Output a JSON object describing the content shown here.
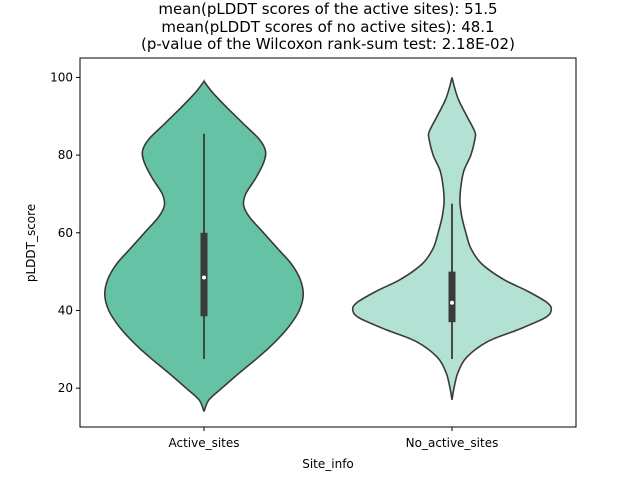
{
  "chart_data": {
    "type": "violin",
    "title_lines": [
      "mean(pLDDT scores of the active sites): 51.5",
      "mean(pLDDT scores of no active sites): 48.1",
      "(p-value of the Wilcoxon rank-sum test: 2.18E-02)"
    ],
    "xlabel": "Site_info",
    "ylabel": "pLDDT_score",
    "ylim": [
      10,
      105
    ],
    "y_ticks": [
      20,
      40,
      60,
      80,
      100
    ],
    "grid": false,
    "categories": [
      "Active_sites",
      "No_active_sites"
    ],
    "series": [
      {
        "category": "Active_sites",
        "color": "#66c2a5",
        "min": 27.5,
        "q1": 38.5,
        "median": 48.5,
        "q3": 60,
        "max": 85.5,
        "density": [
          [
            14,
            0.0
          ],
          [
            17,
            0.05
          ],
          [
            20,
            0.18
          ],
          [
            24,
            0.36
          ],
          [
            28,
            0.55
          ],
          [
            32,
            0.72
          ],
          [
            36,
            0.86
          ],
          [
            40,
            0.96
          ],
          [
            44,
            1.0
          ],
          [
            48,
            0.97
          ],
          [
            52,
            0.88
          ],
          [
            56,
            0.74
          ],
          [
            60,
            0.6
          ],
          [
            64,
            0.46
          ],
          [
            67,
            0.4
          ],
          [
            70,
            0.42
          ],
          [
            74,
            0.52
          ],
          [
            78,
            0.6
          ],
          [
            81,
            0.62
          ],
          [
            84,
            0.56
          ],
          [
            88,
            0.4
          ],
          [
            92,
            0.24
          ],
          [
            96,
            0.09
          ],
          [
            99,
            0.0
          ]
        ]
      },
      {
        "category": "No_active_sites",
        "color": "#b3e2d5",
        "min": 27.5,
        "q1": 37,
        "median": 42,
        "q3": 50,
        "max": 67.5,
        "density": [
          [
            17,
            0.0
          ],
          [
            20,
            0.02
          ],
          [
            24,
            0.06
          ],
          [
            28,
            0.15
          ],
          [
            32,
            0.36
          ],
          [
            35,
            0.66
          ],
          [
            38,
            0.93
          ],
          [
            40,
            1.0
          ],
          [
            42,
            0.96
          ],
          [
            45,
            0.76
          ],
          [
            48,
            0.52
          ],
          [
            52,
            0.3
          ],
          [
            56,
            0.19
          ],
          [
            60,
            0.14
          ],
          [
            64,
            0.1
          ],
          [
            68,
            0.08
          ],
          [
            72,
            0.09
          ],
          [
            76,
            0.12
          ],
          [
            80,
            0.19
          ],
          [
            84,
            0.23
          ],
          [
            86,
            0.23
          ],
          [
            90,
            0.15
          ],
          [
            94,
            0.07
          ],
          [
            97,
            0.03
          ],
          [
            100,
            0.0
          ]
        ]
      }
    ]
  }
}
